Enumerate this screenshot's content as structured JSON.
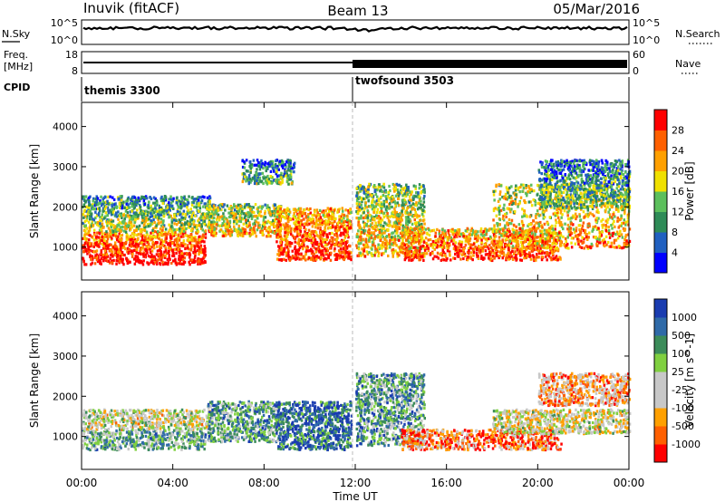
{
  "header": {
    "station": "Inuvik (fitACF)",
    "beam": "Beam 13",
    "date": "05/Mar/2016"
  },
  "panels": {
    "nsky": {
      "label": "N.Sky",
      "right_label": "N.Search",
      "left_ticks": [
        "10^5",
        "10^0"
      ],
      "right_ticks": [
        "10^5",
        "10^0"
      ]
    },
    "freq": {
      "label_top": "Freq.",
      "label_unit": "[MHz]",
      "right_label": "Nave",
      "left_ticks": [
        "18",
        "8"
      ],
      "right_ticks": [
        "60",
        "0"
      ]
    },
    "cpid": {
      "label": "CPID",
      "segments": [
        {
          "name": "themis 3300",
          "start_hour": 0
        },
        {
          "name": "twofsound 3503",
          "start_hour": 12.0
        }
      ]
    }
  },
  "time_axis": {
    "label": "Time UT",
    "ticks": [
      "00:00",
      "04:00",
      "08:00",
      "12:00",
      "16:00",
      "20:00",
      "00:00"
    ]
  },
  "chart_data": [
    {
      "type": "heatmap",
      "ylabel": "Slant Range [km]",
      "xlabel": "",
      "xlim_hours": [
        0,
        24
      ],
      "ylim": [
        180,
        4600
      ],
      "yticks": [
        "4000",
        "3000",
        "2000",
        "1000"
      ],
      "yvalues": [
        4000,
        3000,
        2000,
        1000
      ],
      "colorbar": {
        "label": "Power [dB]",
        "ticks": [
          "28",
          "24",
          "20",
          "16",
          "12",
          "8",
          "4"
        ],
        "colors": [
          "#0000ff",
          "#2060c0",
          "#2e8b57",
          "#5cbf5c",
          "#f0e000",
          "#ffa000",
          "#ff6000",
          "#ff0000"
        ]
      },
      "scatter_regions": [
        {
          "t": [
            0.0,
            5.4
          ],
          "range": [
            600,
            1400
          ],
          "level": 0.88
        },
        {
          "t": [
            0.0,
            5.6
          ],
          "range": [
            1400,
            2300
          ],
          "level": 0.4
        },
        {
          "t": [
            5.5,
            8.7
          ],
          "range": [
            1300,
            2100
          ],
          "level": 0.55
        },
        {
          "t": [
            7.0,
            9.3
          ],
          "range": [
            2600,
            3200
          ],
          "level": 0.3
        },
        {
          "t": [
            8.5,
            11.8
          ],
          "range": [
            700,
            2000
          ],
          "level": 0.8
        },
        {
          "t": [
            12.0,
            15.0
          ],
          "range": [
            800,
            2600
          ],
          "level": 0.55
        },
        {
          "t": [
            14.0,
            21.0
          ],
          "range": [
            700,
            1500
          ],
          "level": 0.78
        },
        {
          "t": [
            18.0,
            24.0
          ],
          "range": [
            1000,
            2600
          ],
          "level": 0.6
        },
        {
          "t": [
            20.0,
            24.0
          ],
          "range": [
            2000,
            3200
          ],
          "level": 0.35
        }
      ]
    },
    {
      "type": "heatmap",
      "ylabel": "Slant Range [km]",
      "xlabel": "Time UT",
      "xlim_hours": [
        0,
        24
      ],
      "ylim": [
        180,
        4600
      ],
      "yticks": [
        "4000",
        "3000",
        "2000",
        "1000"
      ],
      "yvalues": [
        4000,
        3000,
        2000,
        1000
      ],
      "colorbar": {
        "label": "Velocity [m s^-1]",
        "ticks": [
          "1000",
          "500",
          "100",
          "25",
          "-25",
          "-100",
          "-500",
          "-1000"
        ],
        "colors": [
          "#ff0000",
          "#ff6000",
          "#ffa000",
          "#c8c8c8",
          "#c8c8c8",
          "#80d040",
          "#3c8c5a",
          "#2f6aa8",
          "#1a3cb0"
        ]
      },
      "scatter_regions": [
        {
          "t": [
            0.0,
            5.4
          ],
          "range": [
            700,
            1200
          ],
          "level": 0.65
        },
        {
          "t": [
            0.0,
            5.6
          ],
          "range": [
            1200,
            1700
          ],
          "level": 0.45
        },
        {
          "t": [
            5.5,
            8.7
          ],
          "range": [
            900,
            1900
          ],
          "level": 0.7
        },
        {
          "t": [
            8.5,
            11.8
          ],
          "range": [
            700,
            1900
          ],
          "level": 0.85
        },
        {
          "t": [
            12.0,
            15.0
          ],
          "range": [
            800,
            2600
          ],
          "level": 0.7
        },
        {
          "t": [
            14.0,
            21.0
          ],
          "range": [
            700,
            1200
          ],
          "level": 0.2
        },
        {
          "t": [
            18.0,
            24.0
          ],
          "range": [
            1100,
            1700
          ],
          "level": 0.45
        },
        {
          "t": [
            20.0,
            24.0
          ],
          "range": [
            1800,
            2600
          ],
          "level": 0.3
        }
      ]
    }
  ]
}
